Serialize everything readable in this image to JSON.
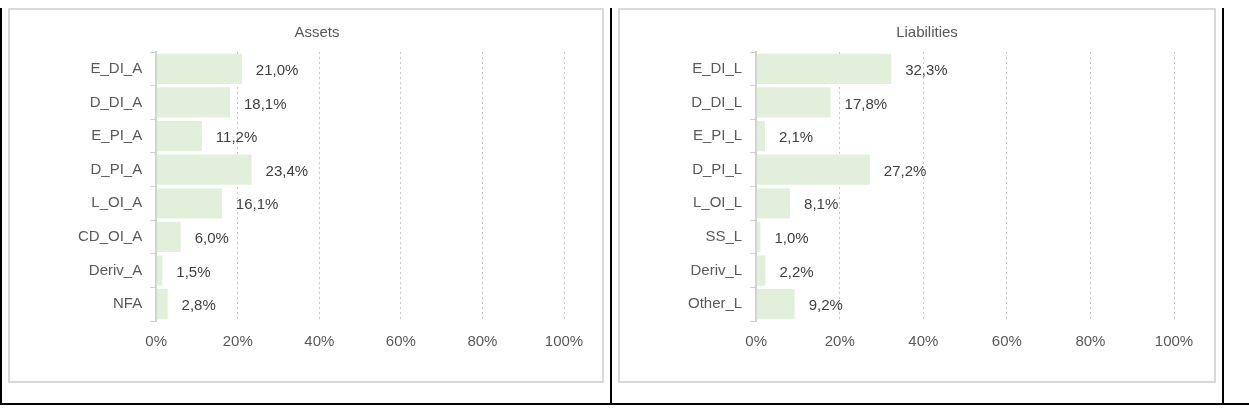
{
  "chart_data": [
    {
      "type": "bar",
      "orientation": "horizontal",
      "title": "Assets",
      "categories": [
        "E_DI_A",
        "D_DI_A",
        "E_PI_A",
        "D_PI_A",
        "L_OI_A",
        "CD_OI_A",
        "Deriv_A",
        "NFA"
      ],
      "values": [
        21.0,
        18.1,
        11.2,
        23.4,
        16.1,
        6.0,
        1.5,
        2.8
      ],
      "value_labels": [
        "21,0%",
        "18,1%",
        "11,2%",
        "23,4%",
        "16,1%",
        "6,0%",
        "1,5%",
        "2,8%"
      ],
      "color": "#e2efda",
      "xlim": [
        0,
        100
      ],
      "xticks": [
        {
          "value": 0,
          "label": "0%"
        },
        {
          "value": 20,
          "label": "20%"
        },
        {
          "value": 40,
          "label": "40%"
        },
        {
          "value": 60,
          "label": "60%"
        },
        {
          "value": 80,
          "label": "80%"
        },
        {
          "value": 100,
          "label": "100%"
        }
      ],
      "grid": "x"
    },
    {
      "type": "bar",
      "orientation": "horizontal",
      "title": "Liabilities",
      "categories": [
        "E_DI_L",
        "D_DI_L",
        "E_PI_L",
        "D_PI_L",
        "L_OI_L",
        "SS_L",
        "Deriv_L",
        "Other_L"
      ],
      "values": [
        32.3,
        17.8,
        2.1,
        27.2,
        8.1,
        1.0,
        2.2,
        9.2
      ],
      "value_labels": [
        "32,3%",
        "17,8%",
        "2,1%",
        "27,2%",
        "8,1%",
        "1,0%",
        "2,2%",
        "9,2%"
      ],
      "color": "#e2efda",
      "xlim": [
        0,
        100
      ],
      "xticks": [
        {
          "value": 0,
          "label": "0%"
        },
        {
          "value": 20,
          "label": "20%"
        },
        {
          "value": 40,
          "label": "40%"
        },
        {
          "value": 60,
          "label": "60%"
        },
        {
          "value": 80,
          "label": "80%"
        },
        {
          "value": 100,
          "label": "100%"
        }
      ],
      "grid": "x"
    }
  ]
}
